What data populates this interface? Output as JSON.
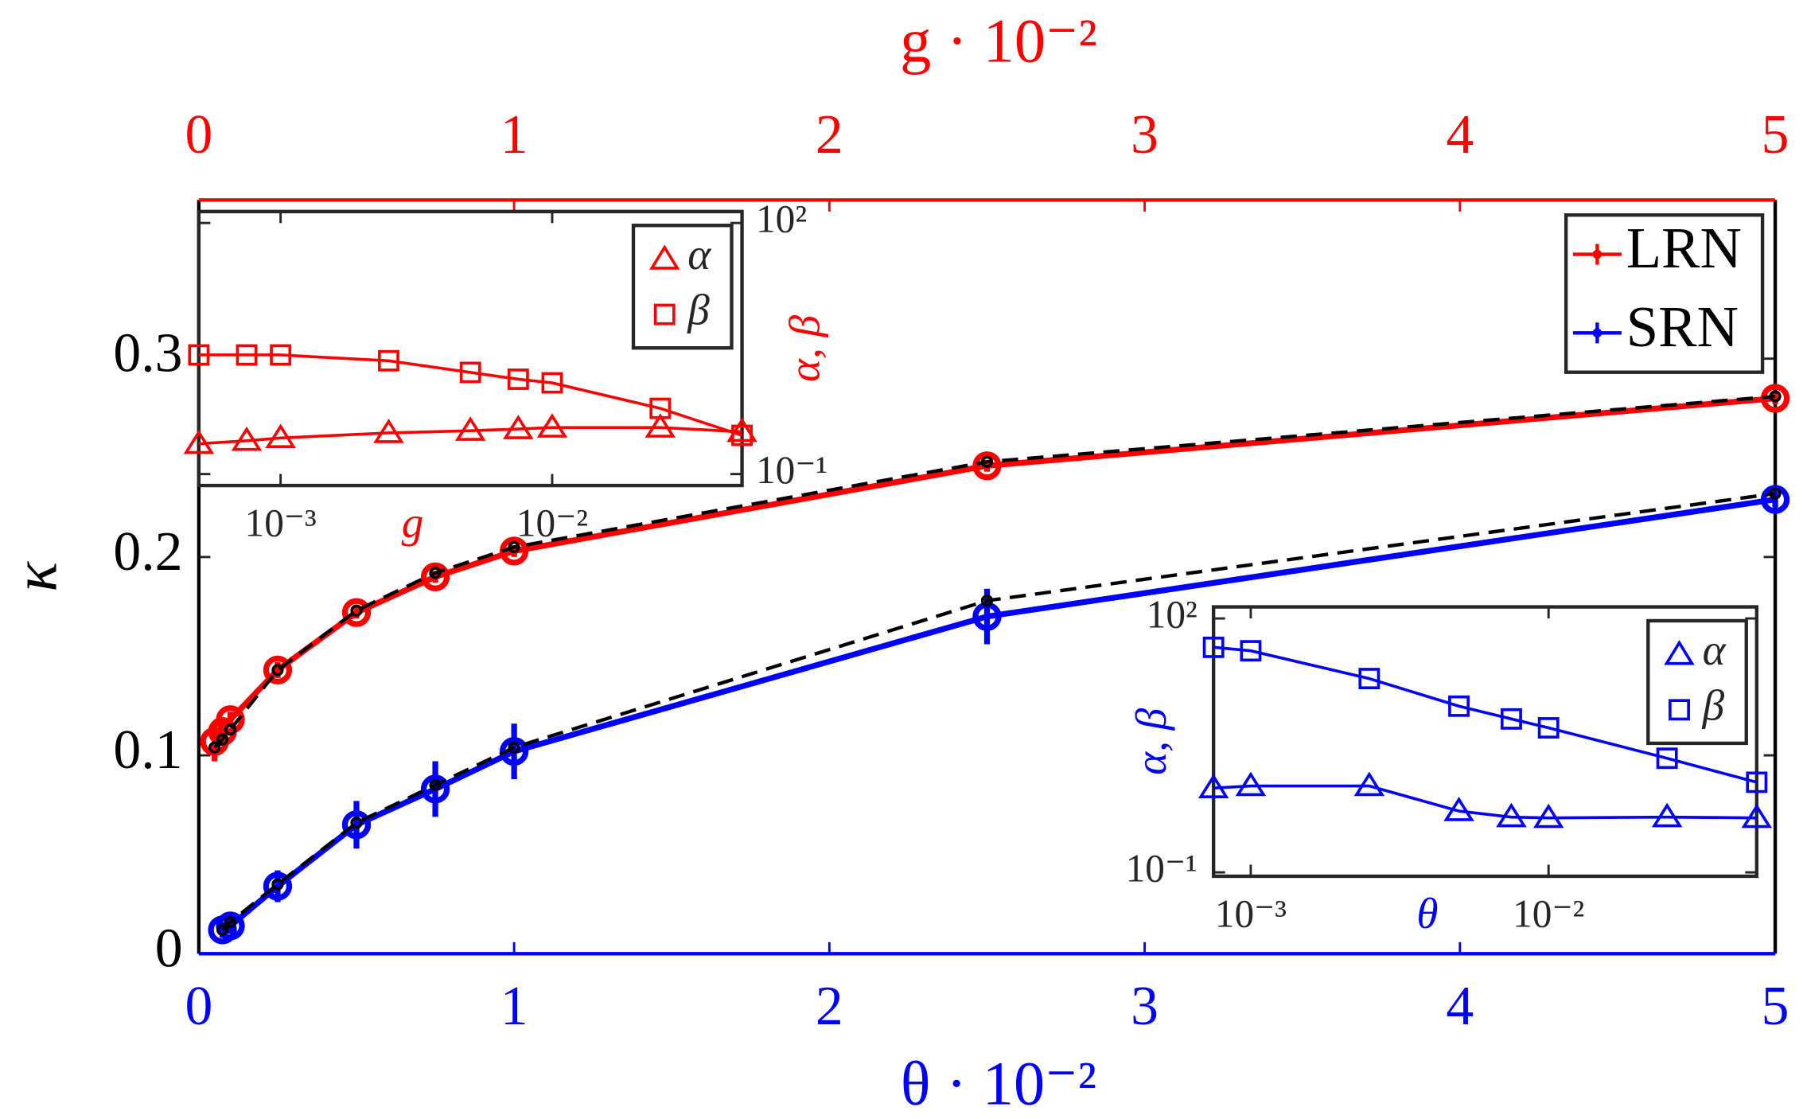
{
  "chart_data": [
    {
      "type": "line",
      "xlabel": "θ · 10⁻²",
      "x2label": "g · 10⁻²",
      "ylabel": "κ",
      "xlim": [
        0,
        5
      ],
      "xticks": [
        0,
        1,
        2,
        3,
        4,
        5
      ],
      "x2lim": [
        0,
        5
      ],
      "x2ticks": [
        0,
        1,
        2,
        3,
        4,
        5
      ],
      "ylim": [
        0,
        0.38
      ],
      "yticks": [
        0,
        0.1,
        0.2,
        0.3
      ],
      "legend": "upper right",
      "series": [
        {
          "name": "LRN",
          "color": "#ff0000",
          "axis": "x2",
          "x": [
            0.05,
            0.075,
            0.1,
            0.25,
            0.5,
            0.75,
            1,
            2.5,
            5
          ],
          "values": [
            0.107,
            0.112,
            0.118,
            0.143,
            0.172,
            0.19,
            0.203,
            0.246,
            0.28
          ],
          "errors": [
            0.01,
            0.006,
            0.004,
            0.004,
            0.003,
            0.003,
            0.003,
            0.003,
            0.003
          ]
        },
        {
          "color": "#000000",
          "axis": "x2",
          "dashed": true,
          "x": [
            0.05,
            0.075,
            0.1,
            0.25,
            0.5,
            0.75,
            1,
            2.5,
            5
          ],
          "values": [
            0.104,
            0.108,
            0.113,
            0.143,
            0.173,
            0.192,
            0.205,
            0.248,
            0.281
          ]
        },
        {
          "name": "SRN",
          "color": "#0000ff",
          "x": [
            0.075,
            0.1,
            0.25,
            0.5,
            0.75,
            1,
            2.5,
            5
          ],
          "values": [
            0.012,
            0.014,
            0.034,
            0.065,
            0.083,
            0.102,
            0.17,
            0.229
          ],
          "errors": [
            0.004,
            0.004,
            0.008,
            0.012,
            0.014,
            0.014,
            0.014,
            0.004
          ]
        },
        {
          "color": "#000000",
          "dashed": true,
          "x": [
            0.075,
            0.1,
            0.25,
            0.5,
            0.75,
            1,
            2.5,
            5
          ],
          "values": [
            0.012,
            0.016,
            0.035,
            0.066,
            0.085,
            0.104,
            0.178,
            0.232
          ]
        }
      ]
    },
    {
      "type": "line",
      "xlabel": "g",
      "ylabel": "α, β",
      "xscale": "log",
      "yscale": "log",
      "xlim": [
        0.0005,
        0.05
      ],
      "ylim": [
        0.073,
        137
      ],
      "xticks": [
        {
          "value": 0.001,
          "label": "10⁻³"
        },
        {
          "value": 0.01,
          "label": "10⁻²"
        }
      ],
      "yticks": [
        {
          "value": 0.1,
          "label": "10⁻¹"
        },
        {
          "value": 100,
          "label": "10²"
        }
      ],
      "legend": "upper right",
      "series": [
        {
          "name": "α",
          "color": "#ff0000",
          "marker": "triangle",
          "x": [
            0.0005,
            0.00075,
            0.001,
            0.0025,
            0.005,
            0.0075,
            0.01,
            0.025,
            0.05
          ],
          "values": [
            0.23,
            0.25,
            0.27,
            0.31,
            0.33,
            0.345,
            0.36,
            0.36,
            0.32
          ]
        },
        {
          "name": "β",
          "color": "#ff0000",
          "marker": "square",
          "x": [
            0.0005,
            0.00075,
            0.001,
            0.0025,
            0.005,
            0.0075,
            0.01,
            0.025,
            0.05
          ],
          "values": [
            2.65,
            2.65,
            2.65,
            2.26,
            1.64,
            1.36,
            1.23,
            0.61,
            0.29
          ]
        }
      ]
    },
    {
      "type": "line",
      "xlabel": "θ",
      "ylabel": "α, β",
      "xscale": "log",
      "yscale": "log",
      "xlim": [
        0.00075,
        0.05
      ],
      "ylim": [
        0.09,
        137
      ],
      "xticks": [
        {
          "value": 0.001,
          "label": "10⁻³"
        },
        {
          "value": 0.01,
          "label": "10⁻²"
        }
      ],
      "yticks": [
        {
          "value": 0.1,
          "label": "10⁻¹"
        },
        {
          "value": 100,
          "label": "10²"
        }
      ],
      "legend": "upper right",
      "series": [
        {
          "name": "α",
          "color": "#0000ff",
          "marker": "triangle",
          "x": [
            0.00075,
            0.001,
            0.0025,
            0.005,
            0.0075,
            0.01,
            0.025,
            0.05
          ],
          "values": [
            0.99,
            1.05,
            1.05,
            0.53,
            0.45,
            0.44,
            0.45,
            0.44
          ]
        },
        {
          "name": "β",
          "color": "#0000ff",
          "marker": "square",
          "x": [
            0.00075,
            0.001,
            0.0025,
            0.005,
            0.0075,
            0.01,
            0.025,
            0.05
          ],
          "values": [
            45.6,
            41.5,
            19.5,
            9.2,
            6.5,
            5.1,
            2.23,
            1.16
          ]
        }
      ]
    }
  ]
}
